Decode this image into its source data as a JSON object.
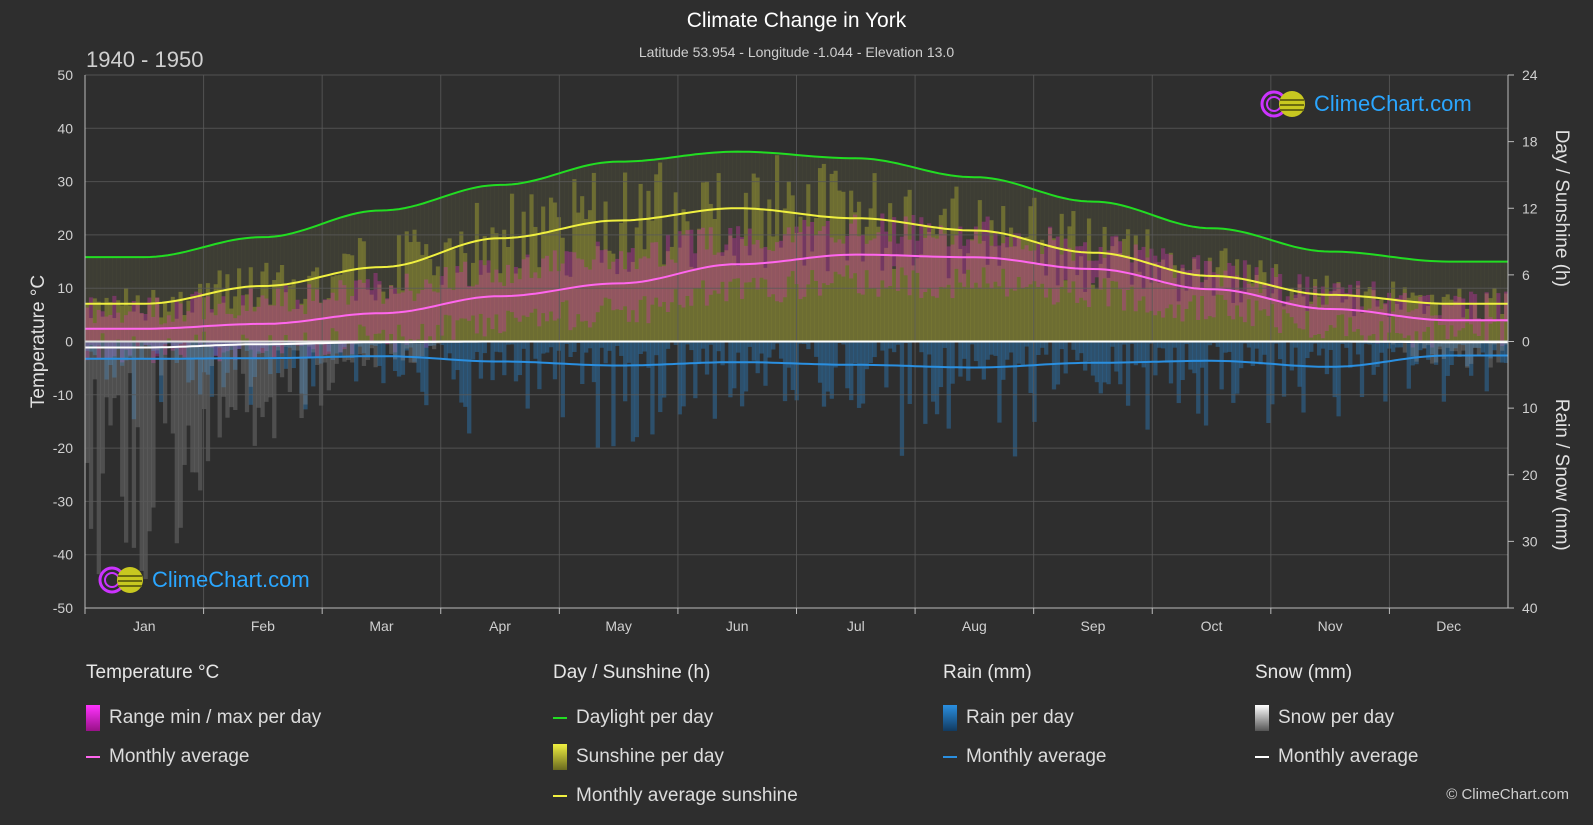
{
  "header": {
    "title": "Climate Change in York",
    "subtitle": "Latitude 53.954 - Longitude -1.044 - Elevation 13.0",
    "period": "1940 - 1950"
  },
  "branding": {
    "logo_text": "ClimeChart.com",
    "copyright": "© ClimeChart.com"
  },
  "legend": {
    "temperature": {
      "heading": "Temperature °C",
      "range_label": "Range min / max per day",
      "avg_label": "Monthly average"
    },
    "sunshine": {
      "heading": "Day / Sunshine (h)",
      "daylight_label": "Daylight per day",
      "sunshine_label": "Sunshine per day",
      "avg_label": "Monthly average sunshine"
    },
    "rain": {
      "heading": "Rain (mm)",
      "per_day_label": "Rain per day",
      "avg_label": "Monthly average"
    },
    "snow": {
      "heading": "Snow (mm)",
      "per_day_label": "Snow per day",
      "avg_label": "Monthly average"
    }
  },
  "colors": {
    "daylight": "#22dd22",
    "sunshine_avg": "#f0f040",
    "sunshine_fill": "#a8a830",
    "temp_avg": "#ff66ee",
    "temp_range": "#cc33aa",
    "rain": "#2a8fe0",
    "snow": "#ffffff",
    "grid": "#5a5a5a",
    "background": "#2e2e2e"
  },
  "chart_data": {
    "type": "line",
    "categories": [
      "Jan",
      "Feb",
      "Mar",
      "Apr",
      "May",
      "Jun",
      "Jul",
      "Aug",
      "Sep",
      "Oct",
      "Nov",
      "Dec"
    ],
    "left_axis": {
      "label": "Temperature °C",
      "range": [
        -50,
        50
      ],
      "ticks": [
        50,
        40,
        30,
        20,
        10,
        0,
        -10,
        -20,
        -30,
        -40,
        -50
      ]
    },
    "right_axis_top": {
      "label": "Day / Sunshine (h)",
      "range": [
        0,
        24
      ],
      "ticks": [
        24,
        18,
        12,
        6,
        0
      ]
    },
    "right_axis_bottom": {
      "label": "Rain / Snow (mm)",
      "range": [
        0,
        40
      ],
      "ticks": [
        0,
        10,
        20,
        30,
        40
      ]
    },
    "grid": true,
    "series": [
      {
        "name": "Daylight per day",
        "axis": "sunshine_h",
        "values": [
          7.6,
          9.4,
          11.8,
          14.1,
          16.2,
          17.1,
          16.5,
          14.8,
          12.6,
          10.2,
          8.1,
          7.2
        ]
      },
      {
        "name": "Monthly average sunshine",
        "axis": "sunshine_h",
        "values": [
          3.4,
          5.0,
          6.7,
          9.3,
          10.9,
          12.0,
          11.1,
          10.0,
          8.0,
          5.9,
          4.2,
          3.4
        ]
      },
      {
        "name": "Temperature monthly average",
        "axis": "temperature_c",
        "values": [
          2.4,
          3.3,
          5.3,
          8.5,
          10.9,
          14.5,
          16.3,
          15.8,
          13.6,
          9.8,
          6.1,
          4.0
        ]
      },
      {
        "name": "Temperature daily max",
        "axis": "temperature_c",
        "values": [
          6.0,
          7.4,
          10.0,
          13.4,
          16.0,
          19.5,
          21.2,
          20.6,
          17.8,
          13.4,
          9.0,
          6.6
        ]
      },
      {
        "name": "Temperature daily min",
        "axis": "temperature_c",
        "values": [
          -1.2,
          -0.8,
          0.7,
          3.5,
          5.8,
          9.4,
          11.4,
          11.0,
          9.3,
          6.2,
          3.2,
          1.4
        ]
      },
      {
        "name": "Rain monthly average",
        "axis": "precip_mm",
        "values": [
          2.6,
          2.5,
          2.2,
          3.0,
          3.6,
          3.1,
          3.5,
          3.9,
          3.2,
          2.9,
          3.8,
          2.1
        ]
      },
      {
        "name": "Snow monthly average",
        "axis": "precip_mm",
        "values": [
          0.9,
          0.4,
          0.1,
          0.0,
          0.0,
          0.0,
          0.0,
          0.0,
          0.0,
          0.0,
          0.0,
          0.1
        ]
      }
    ]
  }
}
